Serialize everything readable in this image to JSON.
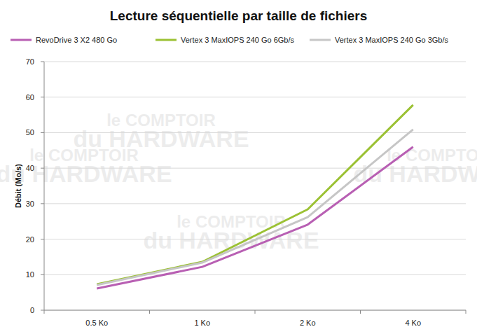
{
  "chart_data": {
    "type": "line",
    "title": "Lecture séquentielle par taille de fichiers",
    "y_label": "Débit (Mo/s)",
    "annotations": [
      "le COMPTOIR du HARDWARE"
    ],
    "categories": [
      "0.5 Ko",
      "1 Ko",
      "2 Ko",
      "4 Ko"
    ],
    "series": [
      {
        "name": "RevoDrive 3 X2 480 Go",
        "color": "#b85fb3",
        "values": [
          6.1,
          12.2,
          24.1,
          46.0
        ]
      },
      {
        "name": "Vertex 3 MaxIOPS 240 Go 6Gb/s",
        "color": "#9bc133",
        "values": [
          7.3,
          13.6,
          28.4,
          57.8
        ]
      },
      {
        "name": "Vertex 3 MaxIOPS 240 Go 3Gb/s",
        "color": "#c6c6c6",
        "values": [
          7.1,
          13.4,
          26.2,
          50.9
        ]
      }
    ],
    "ylim": [
      0,
      70
    ],
    "yticks": [
      0,
      10,
      20,
      30,
      40,
      50,
      60,
      70
    ],
    "grid": true,
    "legend": "top"
  }
}
